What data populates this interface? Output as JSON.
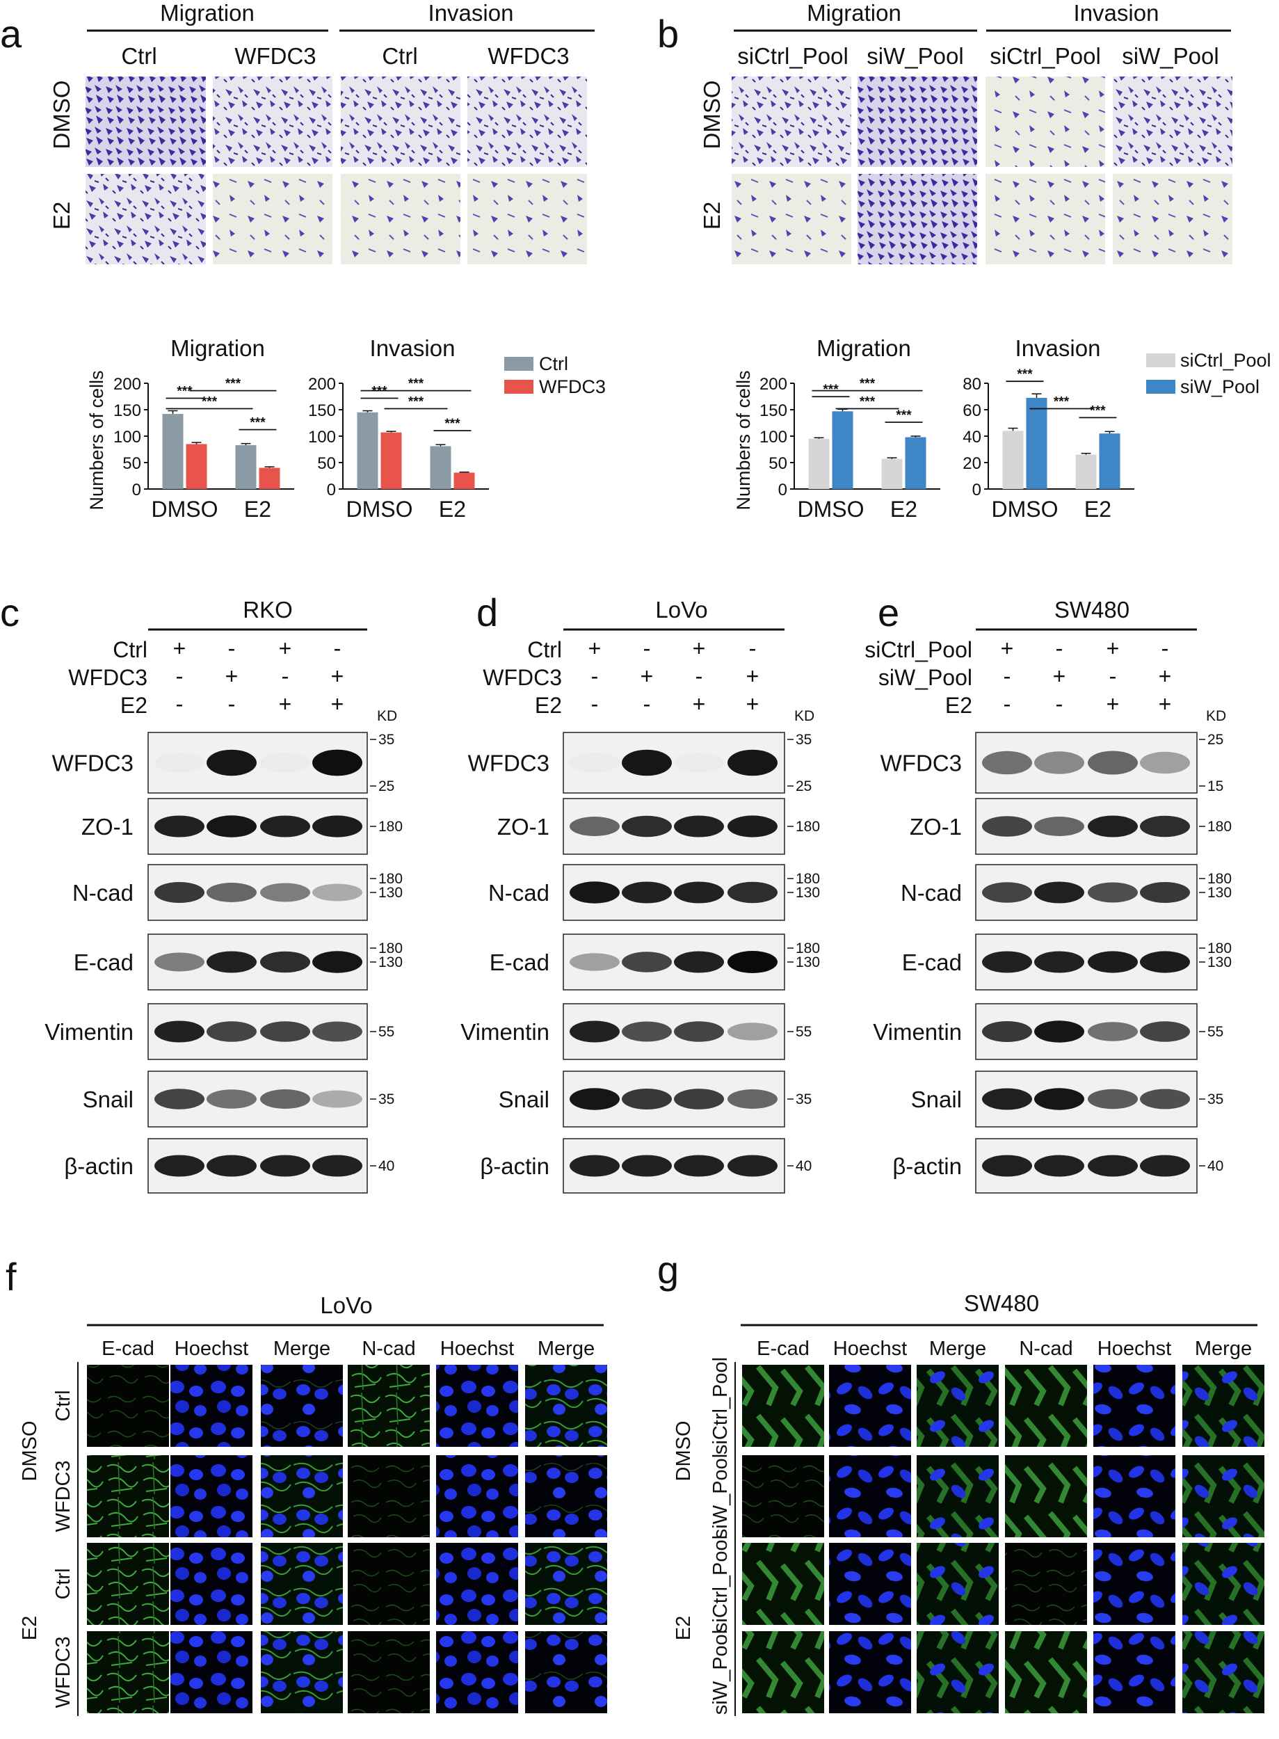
{
  "panels": {
    "a": {
      "label": "a",
      "groups": [
        "Migration",
        "Invasion"
      ],
      "cols": [
        "Ctrl",
        "WFDC3",
        "Ctrl",
        "WFDC3"
      ],
      "rows": [
        "DMSO",
        "E2"
      ]
    },
    "b": {
      "label": "b",
      "groups": [
        "Migration",
        "Invasion"
      ],
      "cols": [
        "siCtrl_Pool",
        "siW_Pool",
        "siCtrl_Pool",
        "siW_Pool"
      ],
      "rows": [
        "DMSO",
        "E2"
      ]
    },
    "c": {
      "label": "c",
      "cell": "RKO",
      "conds": [
        {
          "name": "Ctrl",
          "signs": [
            "+",
            "-",
            "+",
            "-"
          ]
        },
        {
          "name": "WFDC3",
          "signs": [
            "-",
            "+",
            "-",
            "+"
          ]
        },
        {
          "name": "E2",
          "signs": [
            "-",
            "-",
            "+",
            "+"
          ]
        }
      ]
    },
    "d": {
      "label": "d",
      "cell": "LoVo",
      "conds": [
        {
          "name": "Ctrl",
          "signs": [
            "+",
            "-",
            "+",
            "-"
          ]
        },
        {
          "name": "WFDC3",
          "signs": [
            "-",
            "+",
            "-",
            "+"
          ]
        },
        {
          "name": "E2",
          "signs": [
            "-",
            "-",
            "+",
            "+"
          ]
        }
      ]
    },
    "e": {
      "label": "e",
      "cell": "SW480",
      "conds": [
        {
          "name": "siCtrl_Pool",
          "signs": [
            "+",
            "-",
            "+",
            "-"
          ]
        },
        {
          "name": "siW_Pool",
          "signs": [
            "-",
            "+",
            "-",
            "+"
          ]
        },
        {
          "name": "E2",
          "signs": [
            "-",
            "-",
            "+",
            "+"
          ]
        }
      ]
    },
    "f": {
      "label": "f",
      "cell": "LoVo",
      "cols": [
        "E-cad",
        "Hoechst",
        "Merge",
        "N-cad",
        "Hoechst",
        "Merge"
      ],
      "groups": [
        "DMSO",
        "E2"
      ],
      "rows": [
        "Ctrl",
        "WFDC3",
        "Ctrl",
        "WFDC3"
      ]
    },
    "g": {
      "label": "g",
      "cell": "SW480",
      "cols": [
        "E-cad",
        "Hoechst",
        "Merge",
        "N-cad",
        "Hoechst",
        "Merge"
      ],
      "groups": [
        "DMSO",
        "E2"
      ],
      "rows": [
        "siCtrl_Pool",
        "siW_Pool",
        "siCtrl_Pool",
        "siW_Pool"
      ]
    }
  },
  "blots": {
    "kd_label": "KD",
    "proteins": [
      "WFDC3",
      "ZO-1",
      "N-cad",
      "E-cad",
      "Vimentin",
      "Snail",
      "β-actin"
    ],
    "markers_ab": [
      [
        "35",
        "25"
      ],
      [
        "180"
      ],
      [
        "180",
        "130"
      ],
      [
        "180",
        "130"
      ],
      [
        "55"
      ],
      [
        "35"
      ],
      [
        "40"
      ]
    ],
    "markers_e": [
      [
        "25",
        "15"
      ],
      [
        "180"
      ],
      [
        "180",
        "130"
      ],
      [
        "180",
        "130"
      ],
      [
        "55"
      ],
      [
        "35"
      ],
      [
        "40"
      ]
    ]
  },
  "chart_data": [
    {
      "type": "bar",
      "title": "Migration",
      "ylabel": "Numbers of  cells",
      "categories": [
        "DMSO",
        "E2"
      ],
      "ylim": [
        0,
        200
      ],
      "yticks": [
        0,
        50,
        100,
        150,
        200
      ],
      "series": [
        {
          "name": "Ctrl",
          "values": [
            142,
            83
          ],
          "errors": [
            6,
            3
          ]
        },
        {
          "name": "WFDC3",
          "values": [
            85,
            40
          ],
          "errors": [
            3,
            2
          ]
        }
      ],
      "significance": [
        "***",
        "***",
        "***",
        "***"
      ]
    },
    {
      "type": "bar",
      "title": "Invasion",
      "ylabel": "",
      "categories": [
        "DMSO",
        "E2"
      ],
      "ylim": [
        0,
        200
      ],
      "yticks": [
        0,
        50,
        100,
        150,
        200
      ],
      "series": [
        {
          "name": "Ctrl",
          "values": [
            145,
            81
          ],
          "errors": [
            3,
            3
          ]
        },
        {
          "name": "WFDC3",
          "values": [
            107,
            31
          ],
          "errors": [
            2,
            1
          ]
        }
      ],
      "significance": [
        "***",
        "***",
        "***",
        "***"
      ]
    },
    {
      "type": "bar",
      "title": "Migration",
      "ylabel": "Numbers of cells",
      "categories": [
        "DMSO",
        "E2"
      ],
      "ylim": [
        0,
        200
      ],
      "yticks": [
        0,
        50,
        100,
        150,
        200
      ],
      "series": [
        {
          "name": "siCtrl_Pool",
          "values": [
            95,
            57
          ],
          "errors": [
            2,
            2
          ]
        },
        {
          "name": "siW_Pool",
          "values": [
            147,
            98
          ],
          "errors": [
            4,
            2
          ]
        }
      ],
      "significance": [
        "***",
        "***",
        "***",
        "***"
      ]
    },
    {
      "type": "bar",
      "title": "Invasion",
      "ylabel": "",
      "categories": [
        "DMSO",
        "E2"
      ],
      "ylim": [
        0,
        80
      ],
      "yticks": [
        0,
        20,
        40,
        60,
        80
      ],
      "series": [
        {
          "name": "siCtrl_Pool",
          "values": [
            44,
            26
          ],
          "errors": [
            2,
            1
          ]
        },
        {
          "name": "siW_Pool",
          "values": [
            69,
            42
          ],
          "errors": [
            3,
            1.5
          ]
        }
      ],
      "significance": [
        "***",
        "***",
        "***"
      ]
    }
  ],
  "legend_a": [
    {
      "name": "Ctrl",
      "color": "#8a9ba6"
    },
    {
      "name": "WFDC3",
      "color": "#e8534b"
    }
  ],
  "legend_b": [
    {
      "name": "siCtrl_Pool",
      "color": "#d6d6d6"
    },
    {
      "name": "siW_Pool",
      "color": "#3e86c6"
    }
  ],
  "colors": {
    "a": [
      "#8a9ba6",
      "#e8534b"
    ],
    "b": [
      "#d6d6d6",
      "#3e86c6"
    ]
  }
}
